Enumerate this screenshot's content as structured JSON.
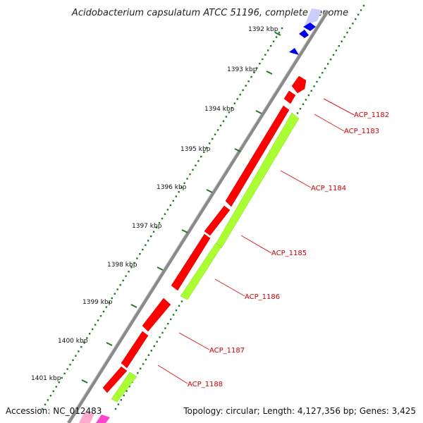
{
  "title": "Acidobacterium capsulatum ATCC 51196, complete genome",
  "footer": {
    "accession": "Accession: NC_012483",
    "info": "Topology: circular; Length: 4,127,356 bp; Genes: 3,425"
  },
  "kbp_ticks": [
    "1392 kbp",
    "1393 kbp",
    "1394 kbp",
    "1395 kbp",
    "1396 kbp",
    "1397 kbp",
    "1398 kbp",
    "1399 kbp",
    "1400 kbp",
    "1401 kbp"
  ],
  "gene_labels": [
    "ACP_1182",
    "ACP_1183",
    "ACP_1184",
    "ACP_1185",
    "ACP_1186",
    "ACP_1187",
    "ACP_1188"
  ],
  "colors": {
    "backbone": "#888888",
    "forward_gene": "#ff0000",
    "reverse_gene": "#aaff33",
    "blue_gene": "#0000ee",
    "light_blue_gene": "#ccccff",
    "pink_gene": "#ff44cc",
    "tick": "#227722",
    "label": "#cc0000"
  }
}
